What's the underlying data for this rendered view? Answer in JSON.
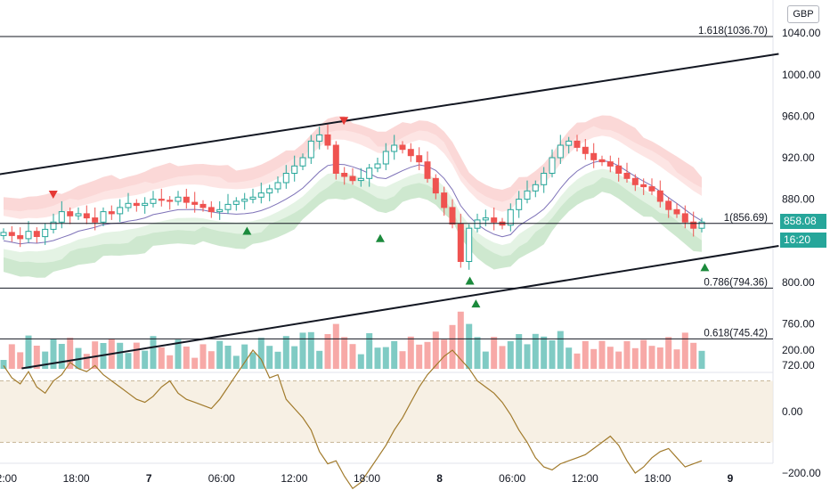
{
  "currency": "GBP",
  "price_tag": {
    "price": "858.08",
    "countdown": "16:20",
    "color": "#26a69a"
  },
  "colors": {
    "up": "#26a69a",
    "down": "#ef5350",
    "vol_up": "#80cbc4",
    "vol_down": "#f7a9a7",
    "upper_band": "#f7a9a7",
    "lower_band": "#a5d6a7",
    "mid_line": "#7e72b8",
    "osc_line": "#a17a2b"
  },
  "chart_data": [
    {
      "type": "candlestick",
      "currency": "GBP",
      "ylim": [
        715,
        1045
      ],
      "y_ticks": [
        720,
        760,
        800,
        840,
        880,
        920,
        960,
        1000,
        1040
      ],
      "y_tick_labels": [
        "720.00",
        "760.00",
        "800.00",
        "840.00",
        "880.00",
        "920.00",
        "960.00",
        "1000.00",
        "1040.00"
      ],
      "time_labels": [
        {
          "label": "12:00",
          "t": 0,
          "bold": false
        },
        {
          "label": "18:00",
          "t": 6,
          "bold": false
        },
        {
          "label": "7",
          "t": 12,
          "bold": true
        },
        {
          "label": "06:00",
          "t": 18,
          "bold": false
        },
        {
          "label": "12:00",
          "t": 24,
          "bold": false
        },
        {
          "label": "18:00",
          "t": 30,
          "bold": false
        },
        {
          "label": "8",
          "t": 36,
          "bold": true
        },
        {
          "label": "06:00",
          "t": 42,
          "bold": false
        },
        {
          "label": "12:00",
          "t": 48,
          "bold": false
        },
        {
          "label": "18:00",
          "t": 54,
          "bold": false
        },
        {
          "label": "9",
          "t": 60,
          "bold": true
        }
      ],
      "xlim": [
        0,
        64
      ],
      "fib_levels": [
        {
          "label": "1.618(1036.70)",
          "value": 1036.7
        },
        {
          "label": "1(856.69)",
          "value": 856.69
        },
        {
          "label": "0.786(794.36)",
          "value": 794.36
        },
        {
          "label": "0.618(745.42)",
          "value": 745.42
        }
      ],
      "trend_lines": [
        {
          "t1": -2,
          "v1": 901,
          "t2": 64,
          "v2": 1020
        },
        {
          "t1": 1.5,
          "v1": 717,
          "t2": 64,
          "v2": 835
        }
      ],
      "closes": [
        848,
        845,
        842,
        849,
        844,
        851,
        858,
        868,
        864,
        866,
        862,
        858,
        868,
        866,
        872,
        876,
        874,
        876,
        880,
        879,
        878,
        882,
        877,
        875,
        872,
        868,
        870,
        875,
        878,
        880,
        882,
        886,
        890,
        896,
        905,
        912,
        920,
        936,
        942,
        932,
        905,
        902,
        898,
        900,
        910,
        914,
        926,
        932,
        928,
        922,
        916,
        900,
        886,
        872,
        856,
        820,
        852,
        860,
        862,
        858,
        855,
        870,
        880,
        888,
        894,
        905,
        920,
        932,
        936,
        930,
        924,
        918,
        916,
        912,
        905,
        900,
        894,
        892,
        888,
        878,
        870,
        866,
        858,
        852,
        858
      ],
      "sell_markers": [
        {
          "t": 4.1,
          "value": 884
        },
        {
          "t": 28.1,
          "value": 955
        }
      ],
      "buy_markers": [
        {
          "t": 20.1,
          "value": 850
        },
        {
          "t": 31.1,
          "value": 843
        },
        {
          "t": 38.5,
          "value": 802
        },
        {
          "t": 39.0,
          "value": 780
        },
        {
          "t": 57.9,
          "value": 815
        }
      ],
      "oscillator": {
        "ylim": [
          -300,
          260
        ],
        "ticks": [
          200,
          0,
          -200
        ],
        "tick_labels": [
          "200.00",
          "0.00",
          "−200.00"
        ],
        "band": [
          100,
          -100
        ],
        "values": [
          150,
          110,
          90,
          130,
          80,
          60,
          100,
          120,
          160,
          140,
          130,
          150,
          120,
          100,
          80,
          60,
          40,
          30,
          50,
          80,
          100,
          60,
          40,
          30,
          20,
          10,
          40,
          80,
          120,
          160,
          200,
          170,
          110,
          120,
          40,
          10,
          -20,
          -60,
          -130,
          -170,
          -160,
          -210,
          -250,
          -230,
          -190,
          -150,
          -110,
          -60,
          -20,
          30,
          80,
          120,
          150,
          180,
          200,
          170,
          140,
          100,
          80,
          60,
          30,
          -10,
          -60,
          -100,
          -150,
          -180,
          -190,
          -170,
          -160,
          -150,
          -140,
          -120,
          -100,
          -80,
          -110,
          -160,
          -200,
          -180,
          -150,
          -130,
          -120,
          -150,
          -180,
          -170,
          -160
        ]
      }
    }
  ]
}
